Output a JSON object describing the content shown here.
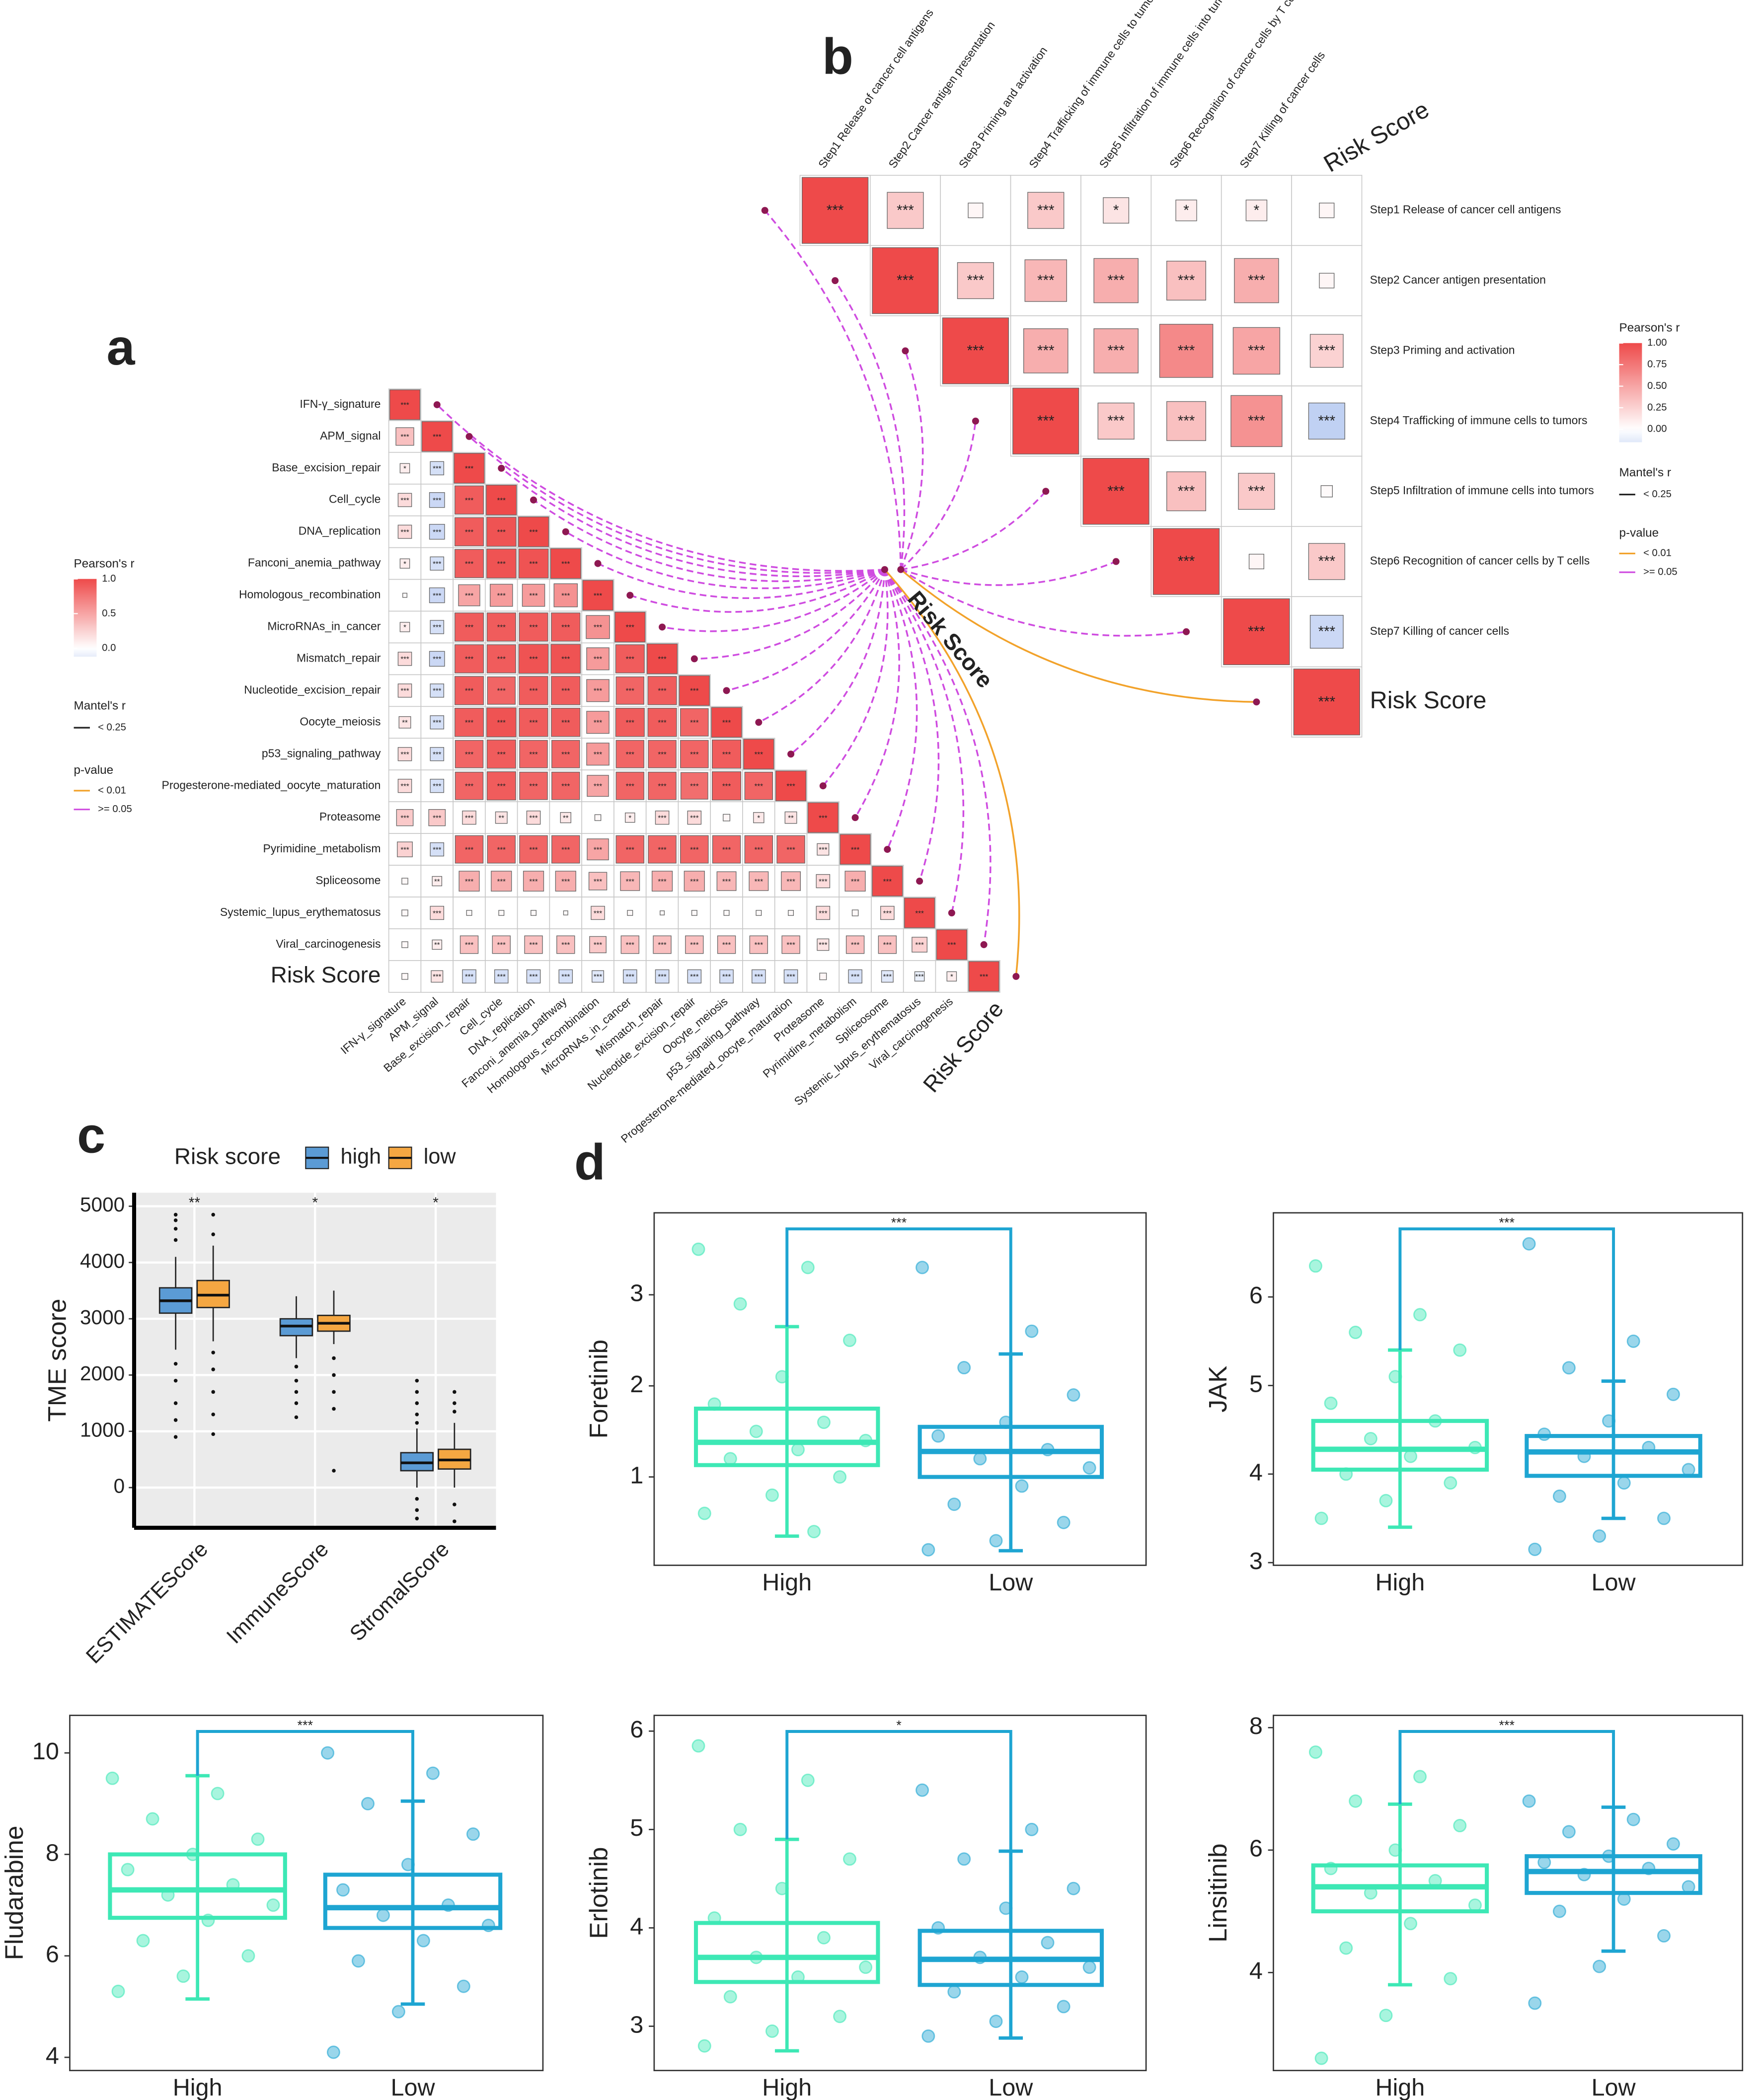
{
  "chart_data": [
    {
      "type": "corrplot",
      "panel": "a",
      "labels": [
        "IFN-γ_signature",
        "APM_signal",
        "Base_excision_repair",
        "Cell_cycle",
        "DNA_replication",
        "Fanconi_anemia_pathway",
        "Homologous_recombination",
        "MicroRNAs_in_cancer",
        "Mismatch_repair",
        "Nucleotide_excision_repair",
        "Oocyte_meiosis",
        "p53_signaling_pathway",
        "Progesterone-mediated_oocyte_maturation",
        "Proteasome",
        "Pyrimidine_metabolism",
        "Spliceosome",
        "Systemic_lupus_erythematosus",
        "Viral_carcinogenesis",
        "Risk Score"
      ],
      "values": [
        [
          1
        ],
        [
          0.35,
          1
        ],
        [
          0.1,
          -0.2,
          1
        ],
        [
          0.2,
          -0.25,
          0.9,
          1
        ],
        [
          0.2,
          -0.25,
          0.9,
          0.95,
          1
        ],
        [
          0.1,
          -0.2,
          0.9,
          0.95,
          0.95,
          1
        ],
        [
          0.02,
          -0.25,
          0.5,
          0.55,
          0.55,
          0.6,
          1
        ],
        [
          0.1,
          -0.2,
          0.9,
          0.9,
          0.9,
          0.9,
          0.6,
          1
        ],
        [
          0.2,
          -0.25,
          0.9,
          0.9,
          0.95,
          0.95,
          0.55,
          0.9,
          1
        ],
        [
          0.2,
          -0.2,
          0.9,
          0.85,
          0.9,
          0.9,
          0.55,
          0.85,
          0.9,
          1
        ],
        [
          0.15,
          -0.2,
          0.9,
          0.95,
          0.9,
          0.9,
          0.55,
          0.9,
          0.9,
          0.85,
          1
        ],
        [
          0.2,
          -0.2,
          0.85,
          0.9,
          0.85,
          0.85,
          0.55,
          0.85,
          0.85,
          0.85,
          0.9,
          1
        ],
        [
          0.2,
          -0.2,
          0.85,
          0.9,
          0.85,
          0.85,
          0.5,
          0.85,
          0.85,
          0.8,
          0.9,
          0.85,
          1
        ],
        [
          0.3,
          0.3,
          0.2,
          0.15,
          0.2,
          0.12,
          0.04,
          0.1,
          0.2,
          0.2,
          0.05,
          0.12,
          0.15,
          1
        ],
        [
          0.25,
          -0.2,
          0.85,
          0.85,
          0.85,
          0.85,
          0.5,
          0.85,
          0.85,
          0.85,
          0.85,
          0.85,
          0.85,
          0.15,
          1
        ],
        [
          0.04,
          0.1,
          0.45,
          0.45,
          0.45,
          0.45,
          0.35,
          0.4,
          0.45,
          0.45,
          0.4,
          0.4,
          0.4,
          0.2,
          0.45,
          1
        ],
        [
          0.04,
          0.2,
          0.03,
          0.03,
          0.03,
          0.02,
          0.2,
          0.03,
          0.02,
          0.03,
          0.03,
          0.03,
          0.03,
          0.2,
          0.04,
          0.2,
          1
        ],
        [
          0.04,
          0.1,
          0.35,
          0.35,
          0.35,
          0.35,
          0.3,
          0.35,
          0.35,
          0.35,
          0.35,
          0.35,
          0.35,
          0.15,
          0.35,
          0.35,
          0.25,
          1
        ],
        [
          0.04,
          0.15,
          -0.2,
          -0.2,
          -0.2,
          -0.2,
          -0.15,
          -0.2,
          -0.2,
          -0.2,
          -0.2,
          -0.2,
          -0.2,
          0.05,
          -0.2,
          -0.15,
          -0.1,
          0.1,
          1
        ]
      ],
      "value_labels": [
        [
          "***"
        ],
        [
          "***",
          "***"
        ],
        [
          "*",
          "***",
          "***"
        ],
        [
          "***",
          "***",
          "***",
          "***"
        ],
        [
          "***",
          "***",
          "***",
          "***",
          "***"
        ],
        [
          "*",
          "***",
          "***",
          "***",
          "***",
          "***"
        ],
        [
          null,
          "***",
          "***",
          "***",
          "***",
          "***",
          "***"
        ],
        [
          "*",
          "***",
          "***",
          "***",
          "***",
          "***",
          "***",
          "***"
        ],
        [
          "***",
          "***",
          "***",
          "***",
          "***",
          "***",
          "***",
          "***",
          "***"
        ],
        [
          "***",
          "***",
          "***",
          "***",
          "***",
          "***",
          "***",
          "***",
          "***",
          "***"
        ],
        [
          "**",
          "***",
          "***",
          "***",
          "***",
          "***",
          "***",
          "***",
          "***",
          "***",
          "***"
        ],
        [
          "***",
          "***",
          "***",
          "***",
          "***",
          "***",
          "***",
          "***",
          "***",
          "***",
          "***",
          "***"
        ],
        [
          "***",
          "***",
          "***",
          "***",
          "***",
          "***",
          "***",
          "***",
          "***",
          "***",
          "***",
          "***",
          "***"
        ],
        [
          "***",
          "***",
          "***",
          "**",
          "***",
          "**",
          null,
          "*",
          "***",
          "***",
          null,
          "*",
          "**",
          "***"
        ],
        [
          "***",
          "***",
          "***",
          "***",
          "***",
          "***",
          "***",
          "***",
          "***",
          "***",
          "***",
          "***",
          "***",
          "***",
          "***"
        ],
        [
          null,
          "**",
          "***",
          "***",
          "***",
          "***",
          "***",
          "***",
          "***",
          "***",
          "***",
          "***",
          "***",
          "***",
          "***",
          "***"
        ],
        [
          null,
          "***",
          null,
          null,
          null,
          null,
          "***",
          null,
          null,
          null,
          null,
          null,
          null,
          "***",
          null,
          "***",
          "***"
        ],
        [
          null,
          "**",
          "***",
          "***",
          "***",
          "***",
          "***",
          "***",
          "***",
          "***",
          "***",
          "***",
          "***",
          "***",
          "***",
          "***",
          "***",
          "***"
        ],
        [
          null,
          "***",
          "***",
          "***",
          "***",
          "***",
          "***",
          "***",
          "***",
          "***",
          "***",
          "***",
          "***",
          null,
          "***",
          "***",
          "***",
          "*",
          "***"
        ]
      ],
      "colorbar": {
        "title": "Pearson's r",
        "lim": [
          -0.12,
          1
        ],
        "ticks": [
          {
            "value": 1,
            "label": "1.0"
          },
          {
            "value": 0.5,
            "label": "0.5"
          },
          {
            "value": 0,
            "label": "0.0"
          }
        ],
        "colors": [
          "#2e64d8",
          "#ffffff",
          "#ee4a4a"
        ]
      },
      "mantel_legend": {
        "title": "Mantel's r",
        "labels": [
          "< 0.25"
        ]
      },
      "p_legend": {
        "title": "p-value",
        "labels": [
          "< 0.01",
          ">= 0.05"
        ],
        "colors": [
          "#f2a22a",
          "#cf4ce0"
        ]
      },
      "link_label": "Risk Score",
      "link_p": [
        1,
        1,
        1,
        1,
        1,
        1,
        1,
        1,
        1,
        1,
        1,
        1,
        1,
        1,
        1,
        1,
        1,
        1,
        0
      ]
    },
    {
      "type": "corrplot",
      "panel": "b",
      "labels": [
        "Step1 Release of cancer cell antigens",
        "Step2 Cancer antigen presentation",
        "Step3 Priming and activation",
        "Step4 Trafficking of immune cells to tumors",
        "Step5 Infiltration of immune cells into tumors",
        "Step6 Recognition of cancer cells by T cells",
        "Step7 Killing of cancer cells",
        "Risk Score"
      ],
      "values": [
        [
          1,
          0.3,
          0.05,
          0.3,
          0.15,
          0.1,
          0.1,
          0.05
        ],
        [
          1,
          0.3,
          0.4,
          0.45,
          0.35,
          0.45,
          0.05
        ],
        [
          1,
          0.45,
          0.45,
          0.65,
          0.5,
          0.25
        ],
        [
          1,
          0.3,
          0.35,
          0.6,
          -0.3
        ],
        [
          1,
          0.35,
          0.3,
          0.03
        ],
        [
          1,
          0.05,
          0.3
        ],
        [
          1,
          -0.25
        ],
        [
          1
        ]
      ],
      "value_labels": [
        [
          "***",
          "***",
          null,
          "***",
          "*",
          "*",
          "*",
          null
        ],
        [
          "***",
          "***",
          "***",
          "***",
          "***",
          "***",
          null
        ],
        [
          "***",
          "***",
          "***",
          "***",
          "***",
          "***"
        ],
        [
          "***",
          "***",
          "***",
          "***",
          "***"
        ],
        [
          "***",
          "***",
          "***",
          null
        ],
        [
          "***",
          null,
          "***"
        ],
        [
          "***",
          "***"
        ],
        [
          "***"
        ]
      ],
      "colorbar": {
        "title": "Pearson's r",
        "lim": [
          -0.15,
          1
        ],
        "ticks": [
          {
            "value": 1,
            "label": "1.00"
          },
          {
            "value": 0.75,
            "label": "0.75"
          },
          {
            "value": 0.5,
            "label": "0.50"
          },
          {
            "value": 0.25,
            "label": "0.25"
          },
          {
            "value": 0,
            "label": "0.00"
          }
        ],
        "colors": [
          "#2e64d8",
          "#ffffff",
          "#ee4a4a"
        ]
      },
      "mantel_legend": {
        "title": "Mantel's r",
        "labels": [
          "< 0.25"
        ]
      },
      "p_legend": {
        "title": "p-value",
        "labels": [
          "< 0.01",
          ">= 0.05"
        ],
        "colors": [
          "#f2a22a",
          "#cf4ce0"
        ]
      },
      "link_p": [
        1,
        1,
        1,
        1,
        1,
        1,
        1,
        0
      ]
    },
    {
      "type": "box",
      "panel": "c",
      "ylabel": "TME score",
      "legend_title": "Risk score",
      "categories": [
        "ESTIMATEScore",
        "ImmuneScore",
        "StromalScore"
      ],
      "series": [
        {
          "name": "high",
          "color": "#5b9bd5",
          "boxes": [
            [
              2450,
              3100,
              3320,
              3550,
              4100
            ],
            [
              2300,
              2700,
              2870,
              3000,
              3400
            ],
            [
              0,
              300,
              440,
              620,
              1050
            ]
          ],
          "outliers": [
            [
              4850,
              4750,
              4600,
              4400,
              2200,
              1900,
              1500,
              1200,
              900
            ],
            [
              2150,
              1900,
              1700,
              1500,
              1250
            ],
            [
              1900,
              1700,
              1500,
              1300,
              1150,
              -200,
              -400,
              -550
            ]
          ]
        },
        {
          "name": "low",
          "color": "#f5a742",
          "boxes": [
            [
              2600,
              3200,
              3420,
              3680,
              4300
            ],
            [
              2550,
              2780,
              2920,
              3060,
              3500
            ],
            [
              0,
              330,
              490,
              680,
              1150
            ]
          ],
          "outliers": [
            [
              4850,
              4500,
              2400,
              2100,
              1700,
              1300,
              950
            ],
            [
              2300,
              2000,
              1700,
              1400,
              300
            ],
            [
              1700,
              1500,
              1350,
              -300,
              -600
            ]
          ]
        }
      ],
      "annotations": [
        "**",
        "*",
        "*"
      ],
      "ylim": [
        -714,
        5240
      ],
      "yticks": [
        0,
        1000,
        2000,
        3000,
        4000,
        5000
      ],
      "grid": true
    },
    {
      "type": "boxjitter",
      "panel": "d",
      "ylabel": "Foretinib",
      "categories": [
        "High",
        "Low"
      ],
      "colors": [
        "#3de8b5",
        "#1ea5d2"
      ],
      "boxes": [
        [
          0.35,
          1.13,
          1.38,
          1.75,
          2.65
        ],
        [
          0.19,
          1.0,
          1.28,
          1.55,
          2.35
        ]
      ],
      "points": [
        [
          3.5,
          3.3,
          2.9,
          2.5,
          2.1,
          1.8,
          1.6,
          1.5,
          1.4,
          1.3,
          1.2,
          1.0,
          0.8,
          0.6,
          0.4
        ],
        [
          3.3,
          2.6,
          2.2,
          1.9,
          1.6,
          1.45,
          1.3,
          1.2,
          1.1,
          0.9,
          0.7,
          0.5,
          0.3,
          0.2
        ]
      ],
      "annotation": "***",
      "ylim": [
        0.03,
        3.9
      ],
      "yticks": [
        1,
        2,
        3
      ]
    },
    {
      "type": "boxjitter",
      "ylabel": "JAK",
      "categories": [
        "High",
        "Low"
      ],
      "colors": [
        "#3de8b5",
        "#1ea5d2"
      ],
      "boxes": [
        [
          3.4,
          4.05,
          4.28,
          4.6,
          5.4
        ],
        [
          3.5,
          3.98,
          4.25,
          4.43,
          5.05
        ]
      ],
      "points": [
        [
          6.35,
          5.8,
          5.6,
          5.4,
          5.1,
          4.8,
          4.6,
          4.4,
          4.3,
          4.2,
          4.0,
          3.9,
          3.7,
          3.5
        ],
        [
          6.6,
          5.5,
          5.2,
          4.9,
          4.6,
          4.45,
          4.3,
          4.2,
          4.05,
          3.9,
          3.75,
          3.5,
          3.3,
          3.15
        ]
      ],
      "annotation": "***",
      "ylim": [
        2.97,
        6.95
      ],
      "yticks": [
        3,
        4,
        5,
        6
      ]
    },
    {
      "type": "boxjitter",
      "ylabel": "Fludarabine",
      "categories": [
        "High",
        "Low"
      ],
      "colors": [
        "#3de8b5",
        "#1ea5d2"
      ],
      "boxes": [
        [
          5.15,
          6.75,
          7.3,
          8.0,
          9.55
        ],
        [
          5.05,
          6.55,
          6.95,
          7.6,
          9.05
        ]
      ],
      "points": [
        [
          9.5,
          9.2,
          8.7,
          8.3,
          8.0,
          7.7,
          7.4,
          7.2,
          7.0,
          6.7,
          6.3,
          6.0,
          5.6,
          5.3
        ],
        [
          10.0,
          9.6,
          9.0,
          8.4,
          7.8,
          7.3,
          7.0,
          6.8,
          6.6,
          6.3,
          5.9,
          5.4,
          4.9,
          4.1
        ]
      ],
      "annotation": "***",
      "ylim": [
        3.74,
        10.74
      ],
      "yticks": [
        4,
        6,
        8,
        10
      ]
    },
    {
      "type": "boxjitter",
      "ylabel": "Erlotinib",
      "categories": [
        "High",
        "Low"
      ],
      "colors": [
        "#3de8b5",
        "#1ea5d2"
      ],
      "boxes": [
        [
          2.75,
          3.45,
          3.7,
          4.05,
          4.9
        ],
        [
          2.88,
          3.42,
          3.68,
          3.97,
          4.78
        ]
      ],
      "points": [
        [
          5.85,
          5.5,
          5.0,
          4.7,
          4.4,
          4.1,
          3.9,
          3.7,
          3.6,
          3.5,
          3.3,
          3.1,
          2.95,
          2.8
        ],
        [
          5.4,
          5.0,
          4.7,
          4.4,
          4.2,
          4.0,
          3.85,
          3.7,
          3.6,
          3.5,
          3.35,
          3.2,
          3.05,
          2.9
        ]
      ],
      "annotation": "*",
      "ylim": [
        2.55,
        6.16
      ],
      "yticks": [
        3,
        4,
        5,
        6
      ]
    },
    {
      "type": "boxjitter",
      "ylabel": "Linsitinib",
      "categories": [
        "High",
        "Low"
      ],
      "colors": [
        "#3de8b5",
        "#1ea5d2"
      ],
      "boxes": [
        [
          3.8,
          5.0,
          5.4,
          5.75,
          6.75
        ],
        [
          4.35,
          5.3,
          5.65,
          5.9,
          6.7
        ]
      ],
      "points": [
        [
          7.6,
          7.2,
          6.8,
          6.4,
          6.0,
          5.7,
          5.5,
          5.3,
          5.1,
          4.8,
          4.4,
          3.9,
          3.3,
          2.6
        ],
        [
          6.8,
          6.5,
          6.3,
          6.1,
          5.9,
          5.8,
          5.7,
          5.6,
          5.4,
          5.2,
          5.0,
          4.6,
          4.1,
          3.5
        ]
      ],
      "annotation": "***",
      "ylim": [
        2.4,
        8.2
      ],
      "yticks": [
        4,
        6,
        8
      ]
    }
  ]
}
